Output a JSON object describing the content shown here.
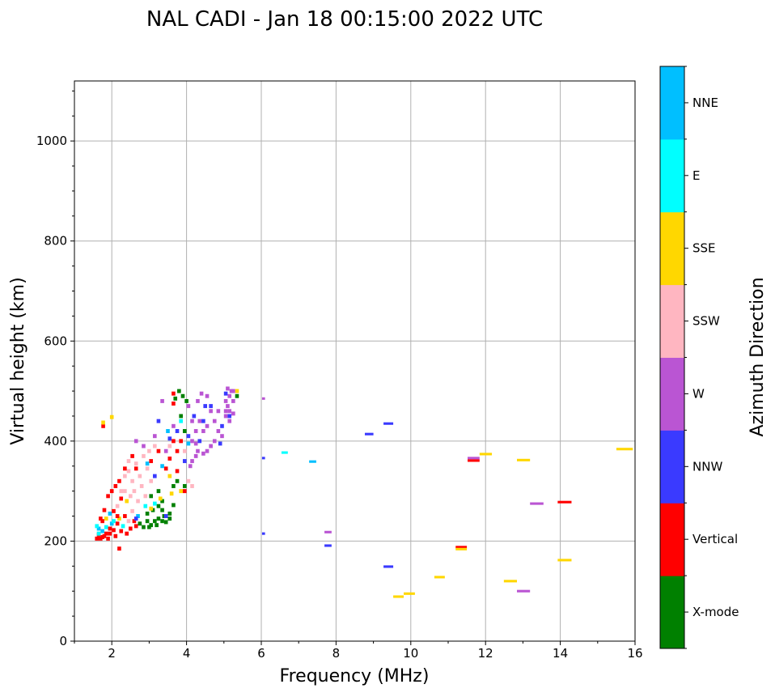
{
  "chart_data": {
    "type": "scatter",
    "title": "NAL CADI - Jan 18 00:15:00 2022 UTC",
    "xlabel": "Frequency (MHz)",
    "ylabel": "Virtual height (km)",
    "xlim": [
      1,
      16
    ],
    "ylim": [
      0,
      1120
    ],
    "xticks": [
      2,
      4,
      6,
      8,
      10,
      12,
      14,
      16
    ],
    "yticks": [
      0,
      200,
      400,
      600,
      800,
      1000
    ],
    "grid": true,
    "colorbar": {
      "label": "Azimuth Direction",
      "categories": [
        "X-mode",
        "Vertical",
        "NNW",
        "W",
        "SSW",
        "SSE",
        "E",
        "NNE"
      ],
      "colors": [
        "#008000",
        "#ff0000",
        "#3a3aff",
        "#ba55d3",
        "#ffb6c1",
        "#ffd700",
        "#00ffff",
        "#00bfff"
      ]
    },
    "cells_format": "[frequency MHz, virtual height km, category index]",
    "cells": [
      [
        1.55,
        205,
        1
      ],
      [
        1.6,
        213,
        1
      ],
      [
        1.65,
        205,
        1
      ],
      [
        1.7,
        220,
        7
      ],
      [
        1.75,
        210,
        1
      ],
      [
        1.8,
        228,
        6
      ],
      [
        1.85,
        205,
        1
      ],
      [
        1.9,
        215,
        1
      ],
      [
        1.95,
        235,
        7
      ],
      [
        1.6,
        225,
        7
      ],
      [
        1.7,
        240,
        1
      ],
      [
        1.8,
        245,
        5
      ],
      [
        1.9,
        255,
        7
      ],
      [
        2.0,
        222,
        1
      ],
      [
        2.05,
        210,
        1
      ],
      [
        2.1,
        235,
        1
      ],
      [
        2.15,
        245,
        5
      ],
      [
        2.2,
        220,
        1
      ],
      [
        2.25,
        230,
        6
      ],
      [
        2.3,
        250,
        1
      ],
      [
        2.35,
        215,
        1
      ],
      [
        2.4,
        240,
        4
      ],
      [
        2.45,
        225,
        1
      ],
      [
        2.5,
        260,
        4
      ],
      [
        2.55,
        240,
        1
      ],
      [
        2.6,
        230,
        1
      ],
      [
        2.65,
        250,
        7
      ],
      [
        2.0,
        260,
        1
      ],
      [
        1.75,
        262,
        1
      ],
      [
        2.1,
        270,
        4
      ],
      [
        1.55,
        230,
        6
      ],
      [
        1.65,
        245,
        1
      ],
      [
        1.85,
        290,
        1
      ],
      [
        1.95,
        300,
        1
      ],
      [
        2.05,
        310,
        1
      ],
      [
        2.15,
        320,
        1
      ],
      [
        2.2,
        285,
        1
      ],
      [
        2.3,
        300,
        4
      ],
      [
        2.35,
        280,
        5
      ],
      [
        2.45,
        290,
        4
      ],
      [
        2.15,
        185,
        1
      ],
      [
        1.72,
        430,
        1
      ],
      [
        1.72,
        437,
        5
      ],
      [
        1.95,
        448,
        5
      ],
      [
        1.6,
        215,
        6
      ],
      [
        1.7,
        208,
        1
      ],
      [
        1.8,
        215,
        1
      ],
      [
        1.9,
        225,
        1
      ],
      [
        2.0,
        240,
        6
      ],
      [
        2.1,
        250,
        1
      ],
      [
        2.7,
        235,
        0
      ],
      [
        2.8,
        228,
        0
      ],
      [
        2.9,
        240,
        0
      ],
      [
        3.0,
        232,
        0
      ],
      [
        3.1,
        240,
        0
      ],
      [
        3.2,
        245,
        0
      ],
      [
        3.3,
        240,
        0
      ],
      [
        3.4,
        238,
        0
      ],
      [
        3.5,
        245,
        0
      ],
      [
        2.9,
        255,
        0
      ],
      [
        3.05,
        262,
        0
      ],
      [
        3.2,
        270,
        0
      ],
      [
        3.3,
        262,
        0
      ],
      [
        3.5,
        255,
        0
      ],
      [
        3.6,
        272,
        0
      ],
      [
        3.0,
        290,
        0
      ],
      [
        3.2,
        300,
        0
      ],
      [
        2.95,
        228,
        0
      ],
      [
        3.15,
        232,
        0
      ],
      [
        3.35,
        250,
        0
      ],
      [
        3.6,
        310,
        0
      ],
      [
        3.7,
        320,
        0
      ],
      [
        3.3,
        280,
        0
      ],
      [
        2.6,
        245,
        2
      ],
      [
        3.4,
        250,
        2
      ],
      [
        3.1,
        275,
        6
      ],
      [
        2.85,
        270,
        6
      ],
      [
        3.0,
        265,
        5
      ],
      [
        3.25,
        285,
        5
      ],
      [
        3.55,
        295,
        5
      ],
      [
        3.8,
        300,
        5
      ],
      [
        3.5,
        330,
        5
      ],
      [
        3.9,
        310,
        0
      ],
      [
        2.3,
        330,
        4
      ],
      [
        2.4,
        340,
        4
      ],
      [
        2.5,
        320,
        4
      ],
      [
        2.55,
        300,
        4
      ],
      [
        2.6,
        355,
        4
      ],
      [
        2.7,
        330,
        4
      ],
      [
        2.75,
        310,
        4
      ],
      [
        2.8,
        370,
        4
      ],
      [
        2.9,
        345,
        4
      ],
      [
        3.0,
        320,
        4
      ],
      [
        2.95,
        380,
        4
      ],
      [
        3.1,
        390,
        4
      ],
      [
        2.4,
        360,
        4
      ],
      [
        2.2,
        300,
        4
      ],
      [
        2.65,
        280,
        4
      ],
      [
        2.85,
        290,
        4
      ],
      [
        3.5,
        390,
        4
      ],
      [
        3.9,
        380,
        4
      ],
      [
        4.0,
        320,
        4
      ],
      [
        4.1,
        310,
        4
      ],
      [
        2.3,
        345,
        1
      ],
      [
        2.5,
        370,
        1
      ],
      [
        2.6,
        345,
        1
      ],
      [
        3.0,
        360,
        1
      ],
      [
        3.2,
        380,
        1
      ],
      [
        3.5,
        365,
        1
      ],
      [
        3.6,
        400,
        1
      ],
      [
        3.7,
        380,
        1
      ],
      [
        3.4,
        345,
        1
      ],
      [
        3.8,
        400,
        1
      ],
      [
        3.9,
        300,
        1
      ],
      [
        3.7,
        340,
        1
      ],
      [
        2.9,
        355,
        7
      ],
      [
        3.1,
        330,
        2
      ],
      [
        3.3,
        350,
        7
      ],
      [
        3.5,
        405,
        2
      ],
      [
        3.7,
        420,
        2
      ],
      [
        3.8,
        440,
        6
      ],
      [
        3.9,
        360,
        2
      ],
      [
        4.0,
        395,
        7
      ],
      [
        3.45,
        420,
        7
      ],
      [
        3.2,
        440,
        2
      ],
      [
        3.1,
        410,
        3
      ],
      [
        3.4,
        380,
        3
      ],
      [
        2.8,
        390,
        3
      ],
      [
        2.6,
        400,
        3
      ],
      [
        3.6,
        475,
        1
      ],
      [
        3.6,
        495,
        1
      ],
      [
        3.65,
        485,
        0
      ],
      [
        3.75,
        500,
        0
      ],
      [
        3.85,
        490,
        0
      ],
      [
        3.95,
        480,
        0
      ],
      [
        3.3,
        480,
        3
      ],
      [
        3.6,
        430,
        3
      ],
      [
        3.8,
        450,
        0
      ],
      [
        3.9,
        420,
        0
      ],
      [
        4.0,
        470,
        3
      ],
      [
        4.1,
        440,
        3
      ],
      [
        4.2,
        420,
        3
      ],
      [
        4.3,
        440,
        3
      ],
      [
        4.4,
        420,
        3
      ],
      [
        4.2,
        395,
        3
      ],
      [
        4.1,
        400,
        3
      ],
      [
        4.0,
        410,
        2
      ],
      [
        4.15,
        450,
        2
      ],
      [
        4.25,
        480,
        3
      ],
      [
        4.35,
        495,
        3
      ],
      [
        4.45,
        470,
        2
      ],
      [
        4.5,
        430,
        3
      ],
      [
        4.6,
        460,
        3
      ],
      [
        4.7,
        440,
        3
      ],
      [
        4.8,
        420,
        3
      ],
      [
        4.7,
        400,
        3
      ],
      [
        4.6,
        390,
        3
      ],
      [
        4.5,
        380,
        3
      ],
      [
        4.4,
        375,
        3
      ],
      [
        4.85,
        395,
        2
      ],
      [
        4.9,
        430,
        2
      ],
      [
        5.0,
        450,
        3
      ],
      [
        5.1,
        440,
        3
      ],
      [
        5.05,
        470,
        3
      ],
      [
        5.1,
        490,
        3
      ],
      [
        5.05,
        505,
        3
      ],
      [
        5.15,
        500,
        3
      ],
      [
        5.2,
        480,
        3
      ],
      [
        5.3,
        500,
        5
      ],
      [
        5.3,
        490,
        0
      ],
      [
        4.9,
        410,
        3
      ],
      [
        4.6,
        470,
        2
      ],
      [
        4.5,
        490,
        3
      ],
      [
        4.4,
        440,
        2
      ],
      [
        4.8,
        460,
        3
      ],
      [
        4.3,
        400,
        2
      ],
      [
        4.25,
        380,
        3
      ],
      [
        4.1,
        360,
        3
      ],
      [
        4.2,
        370,
        3
      ],
      [
        4.05,
        350,
        3
      ],
      [
        5.0,
        460,
        3
      ],
      [
        5.1,
        460,
        3
      ],
      [
        5.2,
        455,
        3
      ],
      [
        5.0,
        480,
        3
      ],
      [
        5.2,
        500,
        3
      ],
      [
        5.1,
        450,
        2
      ],
      [
        5.0,
        495,
        2
      ]
    ],
    "traces_format": "[frequency start MHz, frequency end MHz, virtual height km, category index]",
    "traces": [
      [
        6.02,
        6.1,
        485,
        3
      ],
      [
        8.77,
        9.0,
        414,
        2
      ],
      [
        9.27,
        9.53,
        435,
        2
      ],
      [
        6.54,
        6.71,
        377,
        6
      ],
      [
        6.02,
        6.1,
        366,
        2
      ],
      [
        7.28,
        7.47,
        359,
        7
      ],
      [
        11.52,
        11.84,
        366,
        3
      ],
      [
        11.52,
        11.84,
        361,
        1
      ],
      [
        11.84,
        12.17,
        374,
        5
      ],
      [
        12.84,
        13.19,
        362,
        5
      ],
      [
        15.5,
        15.94,
        384,
        5
      ],
      [
        13.19,
        13.55,
        275,
        3
      ],
      [
        13.93,
        14.3,
        278,
        1
      ],
      [
        6.02,
        6.1,
        215,
        2
      ],
      [
        7.69,
        7.88,
        218,
        3
      ],
      [
        7.69,
        7.88,
        191,
        2
      ],
      [
        11.2,
        11.5,
        188,
        1
      ],
      [
        11.2,
        11.5,
        184,
        5
      ],
      [
        13.93,
        14.3,
        162,
        5
      ],
      [
        9.27,
        9.53,
        149,
        2
      ],
      [
        10.63,
        10.91,
        128,
        5
      ],
      [
        12.49,
        12.84,
        120,
        5
      ],
      [
        12.84,
        13.19,
        100,
        3
      ],
      [
        9.81,
        10.11,
        95,
        5
      ],
      [
        9.53,
        9.81,
        89,
        5
      ]
    ]
  }
}
